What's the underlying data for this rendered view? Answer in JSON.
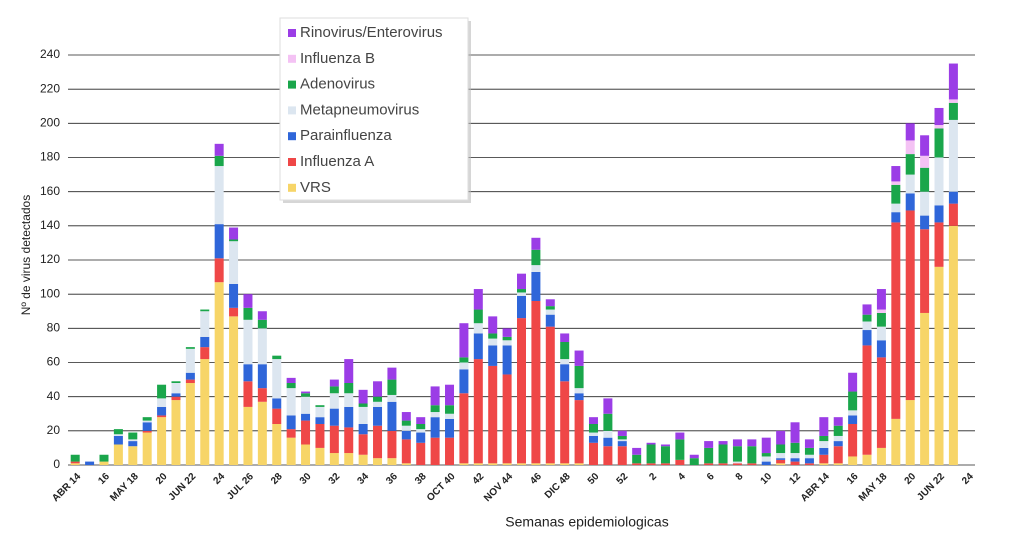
{
  "chart_data": {
    "type": "stacked_bar",
    "y_label": "Nº de virus detectados",
    "x_label": "Semanas epidemiologicas",
    "categories": [
      "ABR 14",
      null,
      "16",
      null,
      "MAY 18",
      null,
      "20",
      null,
      "JUN 22",
      null,
      "24",
      null,
      "JUL 26",
      null,
      "28",
      null,
      "30",
      null,
      "32",
      null,
      "34",
      null,
      "36",
      null,
      "38",
      null,
      "OCT 40",
      null,
      "42",
      null,
      "NOV 44",
      null,
      "46",
      null,
      "DIC 48",
      null,
      "50",
      null,
      "52",
      null,
      "2",
      null,
      "4",
      null,
      "6",
      null,
      "8",
      null,
      "10",
      null,
      "12",
      null,
      "ABR 14",
      null,
      "16",
      null,
      "MAY 18",
      null,
      "20",
      null,
      "JUN 22",
      null,
      "24"
    ],
    "series": [
      {
        "name": "VRS",
        "color": "#f7d568",
        "values": [
          1,
          0,
          2,
          12,
          11,
          19,
          28,
          38,
          48,
          62,
          107,
          87,
          34,
          37,
          24,
          16,
          12,
          10,
          7,
          7,
          6,
          4,
          4,
          1,
          0,
          0,
          0,
          1,
          1,
          1,
          1,
          1,
          1,
          1,
          1,
          1,
          0,
          0,
          0,
          0,
          0,
          0,
          0,
          0,
          0,
          0,
          0,
          0,
          0,
          1,
          0,
          0,
          1,
          1,
          5,
          6,
          10,
          27,
          38,
          89,
          116,
          140,
          null
        ]
      },
      {
        "name": "Influenza A",
        "color": "#ef4747",
        "values": [
          1,
          0,
          0,
          0,
          0,
          1,
          1,
          2,
          2,
          7,
          14,
          5,
          15,
          8,
          9,
          5,
          14,
          14,
          16,
          15,
          12,
          19,
          16,
          14,
          13,
          16,
          16,
          41,
          61,
          57,
          52,
          85,
          95,
          80,
          48,
          37,
          13,
          11,
          11,
          1,
          1,
          1,
          3,
          0,
          1,
          1,
          1,
          1,
          0,
          2,
          2,
          1,
          5,
          10,
          19,
          64,
          53,
          115,
          111,
          49,
          26,
          13,
          null
        ]
      },
      {
        "name": "Parainfluenza",
        "color": "#2f66d9",
        "values": [
          0,
          2,
          0,
          5,
          3,
          5,
          5,
          2,
          4,
          6,
          20,
          14,
          10,
          14,
          6,
          8,
          4,
          4,
          10,
          12,
          6,
          11,
          17,
          5,
          6,
          12,
          11,
          14,
          15,
          12,
          17,
          13,
          17,
          7,
          10,
          4,
          4,
          5,
          3,
          0,
          0,
          0,
          0,
          0,
          0,
          0,
          0,
          0,
          2,
          1,
          2,
          3,
          4,
          3,
          5,
          9,
          10,
          6,
          10,
          8,
          10,
          7,
          null
        ]
      },
      {
        "name": "Metapneumovirus",
        "color": "#dce6f0",
        "values": [
          0,
          0,
          0,
          1,
          1,
          1,
          5,
          6,
          14,
          15,
          34,
          25,
          26,
          21,
          23,
          16,
          10,
          6,
          9,
          8,
          10,
          3,
          4,
          3,
          2,
          3,
          3,
          4,
          6,
          4,
          3,
          2,
          4,
          3,
          3,
          3,
          2,
          4,
          1,
          0,
          0,
          0,
          0,
          0,
          0,
          0,
          1,
          0,
          3,
          3,
          3,
          2,
          4,
          3,
          3,
          5,
          8,
          5,
          11,
          14,
          28,
          42,
          null
        ]
      },
      {
        "name": "Adenovirus",
        "color": "#1aa64b",
        "values": [
          4,
          0,
          4,
          3,
          4,
          2,
          8,
          1,
          1,
          1,
          6,
          1,
          7,
          5,
          2,
          3,
          2,
          1,
          4,
          6,
          2,
          3,
          9,
          3,
          3,
          4,
          5,
          3,
          8,
          3,
          2,
          2,
          9,
          2,
          10,
          13,
          5,
          10,
          2,
          5,
          11,
          10,
          12,
          4,
          9,
          11,
          9,
          10,
          2,
          5,
          6,
          4,
          3,
          6,
          11,
          4,
          8,
          11,
          12,
          14,
          17,
          10,
          null
        ]
      },
      {
        "name": "Influenza B",
        "color": "#f4c2f4",
        "values": [
          0,
          0,
          0,
          0,
          0,
          0,
          0,
          0,
          0,
          0,
          0,
          0,
          0,
          0,
          0,
          0,
          0,
          0,
          0,
          0,
          0,
          0,
          0,
          0,
          0,
          0,
          0,
          0,
          0,
          0,
          0,
          0,
          0,
          0,
          0,
          0,
          0,
          0,
          0,
          0,
          0,
          0,
          0,
          0,
          0,
          0,
          0,
          0,
          0,
          0,
          0,
          0,
          0,
          0,
          0,
          0,
          2,
          2,
          8,
          7,
          2,
          2,
          null
        ]
      },
      {
        "name": "Rinovirus/Enterovirus",
        "color": "#9b3de6",
        "values": [
          0,
          0,
          0,
          0,
          0,
          0,
          0,
          0,
          0,
          0,
          7,
          7,
          8,
          5,
          0,
          3,
          1,
          0,
          4,
          14,
          8,
          9,
          7,
          5,
          4,
          11,
          12,
          20,
          12,
          10,
          5,
          9,
          7,
          4,
          5,
          9,
          4,
          9,
          3,
          4,
          1,
          1,
          4,
          2,
          4,
          2,
          4,
          4,
          9,
          8,
          12,
          5,
          11,
          5,
          11,
          6,
          12,
          9,
          10,
          12,
          10,
          21,
          null
        ]
      }
    ],
    "ylim": [
      0,
      240
    ],
    "yticks": [
      0,
      20,
      40,
      60,
      80,
      100,
      120,
      140,
      160,
      180,
      200,
      220,
      240
    ],
    "grid": true
  }
}
